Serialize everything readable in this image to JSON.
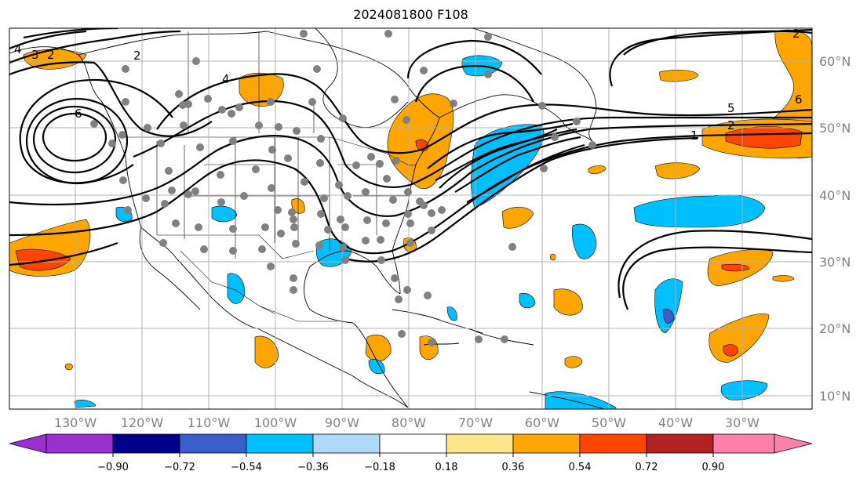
{
  "title": "2024081800 F108",
  "lon_labels": [
    "130°W",
    "120°W",
    "110°W",
    "100°W",
    "90°W",
    "80°W",
    "70°W",
    "60°W",
    "50°W",
    "40°W",
    "30°W"
  ],
  "lat_labels": [
    "60°N",
    "50°N",
    "40°N",
    "30°N",
    "20°N",
    "10°N"
  ],
  "contour_labels": [
    "1",
    "2",
    "5",
    "6",
    "4",
    "6",
    "2",
    "4",
    "3",
    "2",
    "2"
  ],
  "colorbar": {
    "ticks": [
      "−0.90",
      "−0.72",
      "−0.54",
      "−0.36",
      "−0.18",
      "0.18",
      "0.36",
      "0.54",
      "0.72",
      "0.90"
    ],
    "colors": {
      "extend_low": "#9b30d0",
      "c1": "#00008b",
      "c2": "#3a5fcd",
      "c3": "#00bfff",
      "c4": "#add8f8",
      "c5": "#ffffff",
      "c6": "#ffe48a",
      "c7": "#ffa500",
      "c8": "#ff4500",
      "c9": "#b22222",
      "extend_high": "#ff80aa"
    }
  },
  "colors": {
    "positive": "#ffa500",
    "strong_positive": "#ff4500",
    "negative": "#00bfff",
    "strong_negative": "#3a5fcd",
    "station_dot": "#808080",
    "grid": "#b0b0b0"
  }
}
